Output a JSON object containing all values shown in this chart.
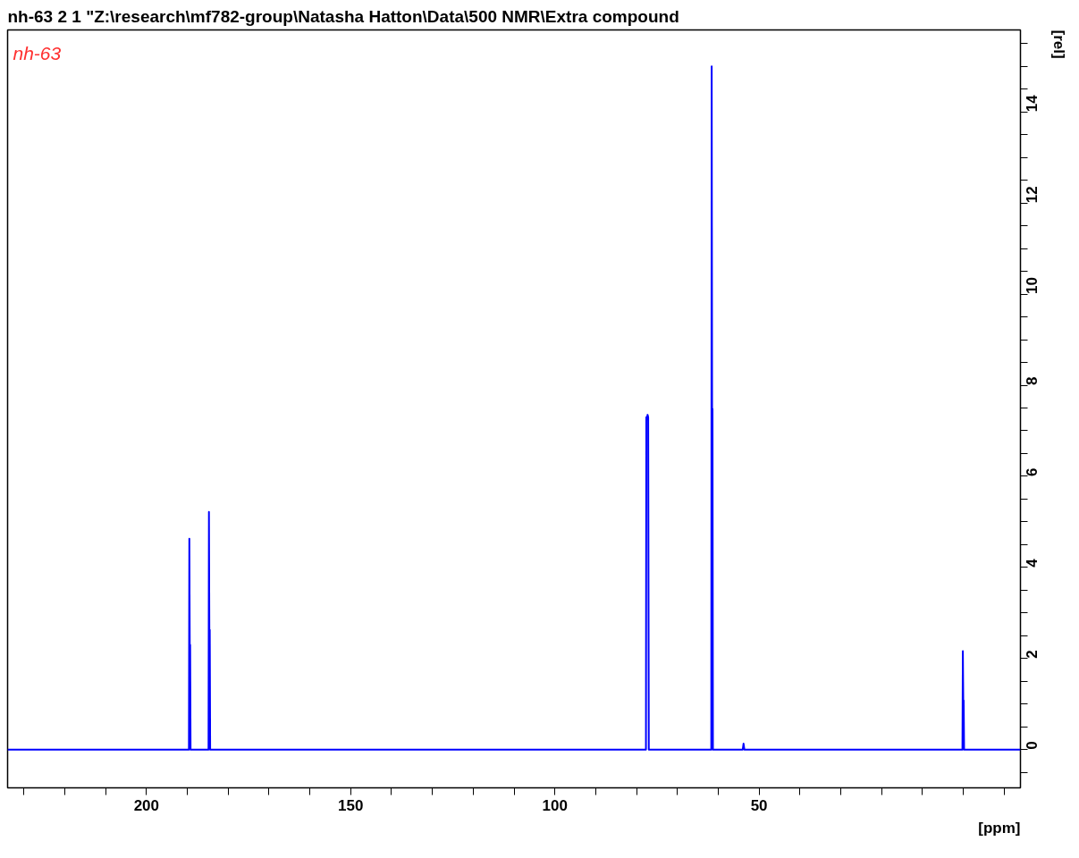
{
  "chart_data": {
    "type": "line",
    "title": "nh-63  2  1  \"Z:\\research\\mf782-group\\Natasha Hatton\\Data\\500 NMR\\Extra compound",
    "subtitle": "nh-63",
    "xlabel": "[ppm]",
    "y2label": "[rel]",
    "grid": false,
    "marker": "none",
    "line_style": "solid",
    "series": [
      {
        "color": "#0000ff",
        "axis": "y2",
        "x": [
          234,
          190,
          189.6,
          189.5,
          189.4,
          189.3,
          189.2,
          189.1,
          185,
          184.8,
          184.7,
          184.6,
          184.5,
          184.4,
          184.3,
          80,
          77.7,
          77.6,
          77.45,
          77.3,
          77.15,
          77.0,
          76.9,
          62,
          61.7,
          61.6,
          61.5,
          61.4,
          61.3,
          61.2,
          54.2,
          54.0,
          53.8,
          53.6,
          53.4,
          0.4,
          0.2,
          0.1,
          0.0,
          -0.1,
          -0.2,
          -14
        ],
        "values": [
          0,
          0,
          0,
          4.63,
          2.3,
          2.3,
          0,
          0,
          0,
          0,
          5.22,
          2.63,
          2.63,
          0,
          0,
          0,
          0,
          7.3,
          7.25,
          7.35,
          7.3,
          0,
          0,
          0,
          0,
          15.0,
          7.48,
          7.48,
          0,
          0,
          0,
          0,
          0.13,
          0,
          0,
          0,
          0,
          2.16,
          1.08,
          1.08,
          0,
          0
        ]
      }
    ],
    "xlim": [
      234,
      -14
    ],
    "xticks": [
      {
        "value": 230,
        "label": null
      },
      {
        "value": 220,
        "label": null
      },
      {
        "value": 210,
        "label": null
      },
      200,
      {
        "value": 190,
        "label": null
      },
      {
        "value": 180,
        "label": null
      },
      {
        "value": 170,
        "label": null
      },
      {
        "value": 160,
        "label": null
      },
      150,
      {
        "value": 140,
        "label": null
      },
      {
        "value": 130,
        "label": null
      },
      {
        "value": 120,
        "label": null
      },
      {
        "value": 110,
        "label": null
      },
      100,
      {
        "value": 90,
        "label": null
      },
      {
        "value": 80,
        "label": null
      },
      {
        "value": 70,
        "label": null
      },
      {
        "value": 60,
        "label": null
      },
      50,
      {
        "value": 40,
        "label": null
      },
      {
        "value": 30,
        "label": null
      },
      {
        "value": 20,
        "label": null
      },
      {
        "value": 10,
        "label": null
      },
      {
        "value": 0,
        "label": null
      },
      {
        "value": -10,
        "label": null
      }
    ],
    "y2lim": [
      -0.84,
      15.8
    ],
    "y2ticks": [
      {
        "value": -0.5,
        "label": null
      },
      0,
      {
        "value": 0.5,
        "label": null
      },
      {
        "value": 1,
        "label": null
      },
      {
        "value": 1.5,
        "label": null
      },
      2,
      {
        "value": 2.5,
        "label": null
      },
      {
        "value": 3,
        "label": null
      },
      {
        "value": 3.5,
        "label": null
      },
      4,
      {
        "value": 4.5,
        "label": null
      },
      {
        "value": 5,
        "label": null
      },
      {
        "value": 5.5,
        "label": null
      },
      6,
      {
        "value": 6.5,
        "label": null
      },
      {
        "value": 7,
        "label": null
      },
      {
        "value": 7.5,
        "label": null
      },
      8,
      {
        "value": 8.5,
        "label": null
      },
      {
        "value": 9,
        "label": null
      },
      {
        "value": 9.5,
        "label": null
      },
      10,
      {
        "value": 10.5,
        "label": null
      },
      {
        "value": 11,
        "label": null
      },
      {
        "value": 11.5,
        "label": null
      },
      12,
      {
        "value": 12.5,
        "label": null
      },
      {
        "value": 13,
        "label": null
      },
      {
        "value": 13.5,
        "label": null
      },
      14,
      {
        "value": 14.5,
        "label": null
      },
      {
        "value": 15,
        "label": null
      },
      {
        "value": 15.5,
        "label": null
      }
    ]
  }
}
